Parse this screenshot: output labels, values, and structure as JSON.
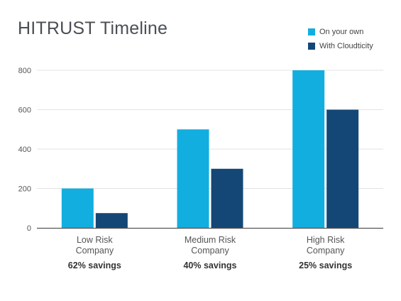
{
  "chart_data": {
    "type": "bar",
    "title": "HITRUST Timeline",
    "categories": [
      [
        "Low Risk",
        "Company"
      ],
      [
        "Medium Risk",
        "Company"
      ],
      [
        "High Risk",
        "Company"
      ]
    ],
    "annotations": [
      "62% savings",
      "40% savings",
      "25% savings"
    ],
    "series": [
      {
        "name": "On your own",
        "color": "#12aee0",
        "values": [
          200,
          500,
          800
        ]
      },
      {
        "name": "With Cloudticity",
        "color": "#144775",
        "values": [
          75,
          300,
          600
        ]
      }
    ],
    "ylim": [
      0,
      800
    ],
    "yticks": [
      0,
      200,
      400,
      600,
      800
    ],
    "grid": true,
    "legend": "top-right"
  }
}
